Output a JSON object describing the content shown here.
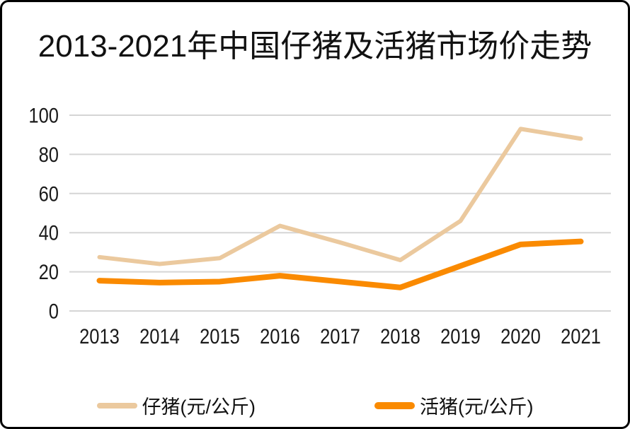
{
  "frame": {
    "background": "#ffffff",
    "border_color": "#000000"
  },
  "chart_data": {
    "type": "line",
    "title": "2013-2021年中国仔猪及活猪市场价走势",
    "categories": [
      "2013",
      "2014",
      "2015",
      "2016",
      "2017",
      "2018",
      "2019",
      "2020",
      "2021"
    ],
    "series": [
      {
        "name": "仔猪(元/公斤)",
        "color": "#EBC99E",
        "stroke_width": 6,
        "values": [
          27.5,
          24,
          27,
          43.5,
          35,
          26,
          46,
          93,
          88
        ]
      },
      {
        "name": "活猪(元/公斤)",
        "color": "#FA8A00",
        "stroke_width": 8,
        "values": [
          15.5,
          14.5,
          15,
          18,
          15,
          12,
          23,
          34,
          35.5
        ]
      }
    ],
    "xlabel": "",
    "ylabel": "",
    "ylim": [
      0,
      100
    ],
    "y_ticks": [
      0,
      20,
      40,
      60,
      80,
      100
    ],
    "grid": true,
    "gridline_color": "#D5D5D5",
    "tick_label_color": "#1a1a1a",
    "legend_position": "bottom"
  }
}
